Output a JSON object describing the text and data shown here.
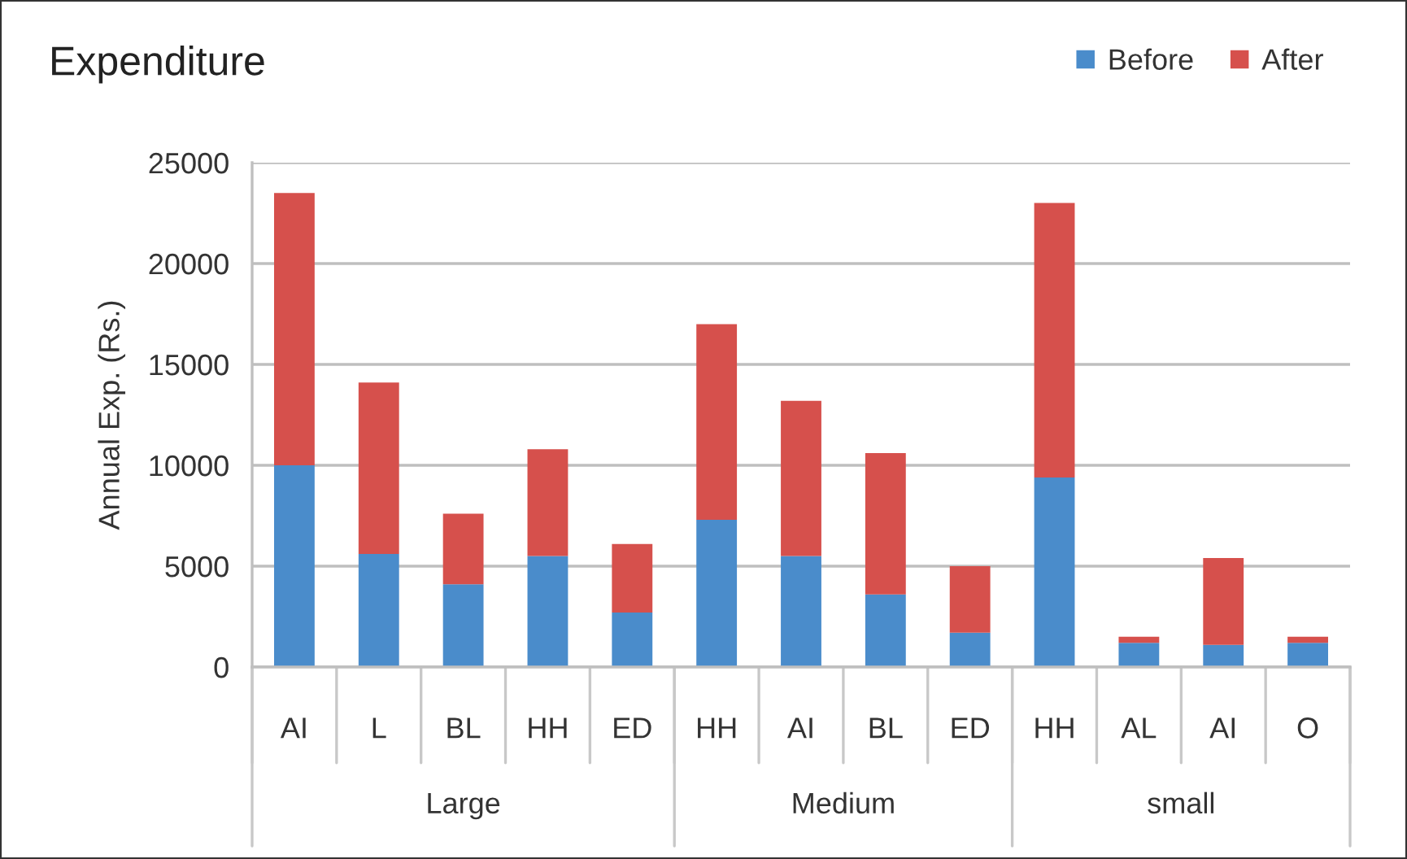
{
  "chart_data": {
    "type": "bar",
    "title": "Expenditure",
    "ylabel": "Annual Exp. (Rs.)",
    "categories": [
      "AI",
      "L",
      "BL",
      "HH",
      "ED",
      "HH",
      "AI",
      "BL",
      "ED",
      "HH",
      "AL",
      "AI",
      "O"
    ],
    "series": [
      {
        "name": "Before",
        "color": "#4a8ccb",
        "values": [
          10000,
          5600,
          4100,
          5500,
          2700,
          7300,
          5500,
          3600,
          1700,
          9400,
          1200,
          1100,
          1200
        ]
      },
      {
        "name": "After",
        "color": "#d6504c",
        "values": [
          13500,
          8500,
          3500,
          5300,
          3400,
          9700,
          7700,
          7000,
          3300,
          13600,
          300,
          4300,
          300
        ]
      }
    ],
    "stacked": true,
    "ylim": [
      0,
      25000
    ],
    "yticks": [
      0,
      5000,
      10000,
      15000,
      20000,
      25000
    ],
    "grid": "y",
    "legend": "top right",
    "annotations": [
      "Large",
      "Medium",
      "small"
    ]
  }
}
